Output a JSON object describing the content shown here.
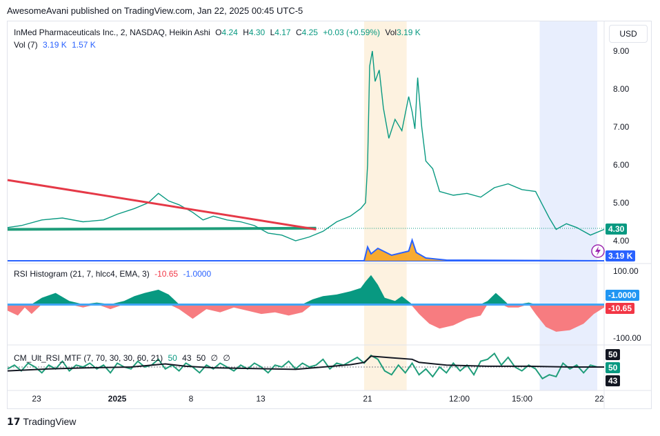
{
  "header": {
    "published": "AwesomeAvani published on TradingView.com, Jan 22, 2025 00:45 UTC-5"
  },
  "legend": {
    "symbol": "InMed Pharmaceuticals Inc., 2, NASDAQ, Heikin Ashi",
    "o_label": "O",
    "o_val": "4.24",
    "h_label": "H",
    "h_val": "4.30",
    "l_label": "L",
    "l_val": "4.17",
    "c_label": "C",
    "c_val": "4.25",
    "change": "+0.03 (+0.59%)",
    "vol_label": "Vol",
    "vol_val": "3.19 K",
    "vol_name": "Vol (7)",
    "vol_v1": "3.19 K",
    "vol_v2": "1.57 K"
  },
  "currency": "USD",
  "price_axis": {
    "ticks": [
      "9.00",
      "8.00",
      "7.00",
      "6.00",
      "5.00",
      "4.00"
    ],
    "last_price": "4.30",
    "vol_tag": "3.19 K"
  },
  "rsi_hist": {
    "title": "RSI Histogram (21, 7, hlcc4, EMA, 3)",
    "v1": "-10.65",
    "v2": "-1.0000",
    "ticks": [
      "100.00",
      "-100.00"
    ],
    "tag_blue": "-1.0000",
    "tag_red": "-10.65"
  },
  "cm_rsi": {
    "title": "CM_Ult_RSI_MTF (7, 70, 30, 30, 60, 21)",
    "v1": "50",
    "v2": "43",
    "v3": "50",
    "v4": "∅",
    "v5": "∅",
    "tags": [
      "50",
      "50",
      "43"
    ]
  },
  "time_axis": [
    "23",
    "2025",
    "8",
    "13",
    "21",
    "12:00",
    "15:00",
    "22"
  ],
  "footer": {
    "brand": "TradingView"
  },
  "colors": {
    "up": "#089981",
    "down": "#f23645",
    "trend": "#e53947",
    "support": "#1f9d7a",
    "vol_line": "#2962ff",
    "vol_bar": "#f7a21b"
  },
  "chart_data": {
    "type": "line",
    "title": "InMed Pharmaceuticals Inc., 2, NASDAQ, Heikin Ashi",
    "ylim": [
      3.6,
      9.35
    ],
    "price_path": [
      [
        0,
        4.35
      ],
      [
        20,
        4.4
      ],
      [
        50,
        4.55
      ],
      [
        80,
        4.6
      ],
      [
        110,
        4.5
      ],
      [
        140,
        4.55
      ],
      [
        160,
        4.7
      ],
      [
        185,
        4.85
      ],
      [
        205,
        5.0
      ],
      [
        220,
        5.25
      ],
      [
        235,
        5.05
      ],
      [
        250,
        4.95
      ],
      [
        270,
        4.75
      ],
      [
        285,
        4.55
      ],
      [
        300,
        4.65
      ],
      [
        320,
        4.55
      ],
      [
        340,
        4.5
      ],
      [
        360,
        4.4
      ],
      [
        380,
        4.2
      ],
      [
        400,
        4.15
      ],
      [
        420,
        4.0
      ],
      [
        440,
        4.1
      ],
      [
        460,
        4.25
      ],
      [
        480,
        4.5
      ],
      [
        500,
        4.65
      ],
      [
        515,
        4.85
      ],
      [
        522,
        5.0
      ],
      [
        525,
        6.0
      ],
      [
        528,
        8.6
      ],
      [
        532,
        9.0
      ],
      [
        536,
        8.2
      ],
      [
        542,
        8.5
      ],
      [
        548,
        7.5
      ],
      [
        556,
        6.7
      ],
      [
        565,
        7.2
      ],
      [
        575,
        6.9
      ],
      [
        585,
        7.8
      ],
      [
        590,
        7.4
      ],
      [
        594,
        6.95
      ],
      [
        598,
        8.3
      ],
      [
        604,
        7.0
      ],
      [
        610,
        6.1
      ],
      [
        620,
        5.9
      ],
      [
        630,
        5.3
      ],
      [
        650,
        5.2
      ],
      [
        670,
        5.25
      ],
      [
        690,
        5.15
      ],
      [
        710,
        5.4
      ],
      [
        730,
        5.5
      ],
      [
        750,
        5.35
      ],
      [
        770,
        5.3
      ],
      [
        780,
        4.95
      ],
      [
        790,
        4.6
      ],
      [
        800,
        4.3
      ],
      [
        815,
        4.45
      ],
      [
        830,
        4.35
      ],
      [
        850,
        4.15
      ],
      [
        870,
        4.3
      ]
    ],
    "trendline": [
      [
        0,
        5.6
      ],
      [
        450,
        4.3
      ]
    ],
    "support": [
      [
        0,
        4.3
      ],
      [
        450,
        4.33
      ]
    ],
    "rsi_histogram_ylim": [
      -100,
      100
    ],
    "rsi_histogram": [
      [
        0,
        -20
      ],
      [
        15,
        -35
      ],
      [
        25,
        -10
      ],
      [
        35,
        -30
      ],
      [
        50,
        20
      ],
      [
        70,
        35
      ],
      [
        90,
        10
      ],
      [
        110,
        -10
      ],
      [
        130,
        5
      ],
      [
        150,
        -15
      ],
      [
        170,
        10
      ],
      [
        185,
        25
      ],
      [
        200,
        35
      ],
      [
        220,
        45
      ],
      [
        235,
        30
      ],
      [
        250,
        -15
      ],
      [
        270,
        -45
      ],
      [
        290,
        -15
      ],
      [
        310,
        -25
      ],
      [
        330,
        -10
      ],
      [
        350,
        -20
      ],
      [
        370,
        -30
      ],
      [
        390,
        -25
      ],
      [
        410,
        -35
      ],
      [
        430,
        -25
      ],
      [
        445,
        15
      ],
      [
        460,
        25
      ],
      [
        480,
        30
      ],
      [
        500,
        40
      ],
      [
        515,
        50
      ],
      [
        522,
        70
      ],
      [
        530,
        90
      ],
      [
        540,
        60
      ],
      [
        550,
        20
      ],
      [
        565,
        10
      ],
      [
        575,
        25
      ],
      [
        590,
        -5
      ],
      [
        600,
        -30
      ],
      [
        615,
        -60
      ],
      [
        630,
        -75
      ],
      [
        650,
        -65
      ],
      [
        670,
        -45
      ],
      [
        690,
        -35
      ],
      [
        700,
        10
      ],
      [
        712,
        35
      ],
      [
        720,
        20
      ],
      [
        730,
        -10
      ],
      [
        745,
        -10
      ],
      [
        760,
        5
      ],
      [
        770,
        -30
      ],
      [
        785,
        -70
      ],
      [
        800,
        -85
      ],
      [
        820,
        -80
      ],
      [
        840,
        -60
      ],
      [
        855,
        -30
      ],
      [
        870,
        -10
      ]
    ],
    "rsi_histogram_signal": -1.0,
    "cm_rsi_ylim": [
      0,
      100
    ],
    "cm_rsi_series": {
      "name": "50",
      "points": [
        [
          0,
          45
        ],
        [
          10,
          55
        ],
        [
          20,
          40
        ],
        [
          30,
          60
        ],
        [
          40,
          50
        ],
        [
          50,
          35
        ],
        [
          60,
          55
        ],
        [
          70,
          45
        ],
        [
          80,
          65
        ],
        [
          90,
          40
        ],
        [
          100,
          55
        ],
        [
          110,
          50
        ],
        [
          120,
          60
        ],
        [
          130,
          45
        ],
        [
          140,
          55
        ],
        [
          150,
          35
        ],
        [
          160,
          60
        ],
        [
          170,
          50
        ],
        [
          180,
          45
        ],
        [
          190,
          65
        ],
        [
          200,
          50
        ],
        [
          210,
          55
        ],
        [
          220,
          70
        ],
        [
          230,
          45
        ],
        [
          240,
          55
        ],
        [
          250,
          40
        ],
        [
          260,
          60
        ],
        [
          270,
          50
        ],
        [
          280,
          35
        ],
        [
          290,
          55
        ],
        [
          300,
          45
        ],
        [
          310,
          60
        ],
        [
          320,
          50
        ],
        [
          330,
          40
        ],
        [
          340,
          55
        ],
        [
          350,
          45
        ],
        [
          360,
          60
        ],
        [
          370,
          50
        ],
        [
          380,
          35
        ],
        [
          390,
          55
        ],
        [
          400,
          50
        ],
        [
          410,
          65
        ],
        [
          420,
          45
        ],
        [
          430,
          60
        ],
        [
          440,
          50
        ],
        [
          450,
          55
        ],
        [
          460,
          70
        ],
        [
          470,
          45
        ],
        [
          480,
          60
        ],
        [
          490,
          55
        ],
        [
          500,
          65
        ],
        [
          510,
          75
        ],
        [
          520,
          60
        ],
        [
          530,
          80
        ],
        [
          540,
          70
        ],
        [
          550,
          40
        ],
        [
          560,
          30
        ],
        [
          570,
          55
        ],
        [
          580,
          35
        ],
        [
          590,
          60
        ],
        [
          600,
          30
        ],
        [
          610,
          45
        ],
        [
          620,
          25
        ],
        [
          630,
          50
        ],
        [
          640,
          35
        ],
        [
          650,
          60
        ],
        [
          660,
          40
        ],
        [
          670,
          55
        ],
        [
          680,
          30
        ],
        [
          690,
          65
        ],
        [
          700,
          70
        ],
        [
          710,
          85
        ],
        [
          720,
          55
        ],
        [
          730,
          75
        ],
        [
          740,
          50
        ],
        [
          750,
          40
        ],
        [
          760,
          55
        ],
        [
          770,
          45
        ],
        [
          780,
          20
        ],
        [
          790,
          30
        ],
        [
          800,
          25
        ],
        [
          810,
          60
        ],
        [
          820,
          45
        ],
        [
          830,
          55
        ],
        [
          840,
          35
        ],
        [
          850,
          55
        ],
        [
          860,
          50
        ],
        [
          870,
          50
        ]
      ]
    },
    "cm_rsi_mtf": [
      [
        0,
        40
      ],
      [
        60,
        45
      ],
      [
        120,
        48
      ],
      [
        180,
        50
      ],
      [
        230,
        58
      ],
      [
        260,
        52
      ],
      [
        300,
        48
      ],
      [
        360,
        46
      ],
      [
        420,
        44
      ],
      [
        460,
        50
      ],
      [
        500,
        56
      ],
      [
        520,
        62
      ],
      [
        530,
        78
      ],
      [
        560,
        74
      ],
      [
        590,
        70
      ],
      [
        600,
        62
      ],
      [
        640,
        55
      ],
      [
        700,
        52
      ],
      [
        760,
        52
      ],
      [
        820,
        50
      ],
      [
        870,
        50
      ]
    ],
    "sessions": [
      {
        "from": 520,
        "to": 582,
        "color": "#fdf2e0"
      },
      {
        "from": 776,
        "to": 860,
        "color": "#e8eefd"
      }
    ]
  }
}
